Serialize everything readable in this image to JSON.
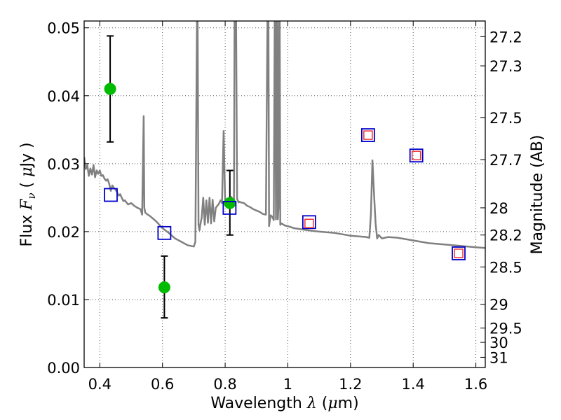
{
  "chart_data": {
    "type": "scatter",
    "title": "",
    "xlabel": "Wavelength  λ (μm)",
    "ylabel": "Flux  F_ν  ( μJy )",
    "y2label": "Magnitude (AB)",
    "xlim": [
      0.35,
      1.63
    ],
    "ylim": [
      0.0,
      0.051
    ],
    "grid": true,
    "legend": "none",
    "x_ticks": [
      {
        "value": 0.4,
        "label": "0.4"
      },
      {
        "value": 0.6,
        "label": "0.6"
      },
      {
        "value": 0.8,
        "label": "0.8"
      },
      {
        "value": 1.0,
        "label": "1"
      },
      {
        "value": 1.2,
        "label": "1.2"
      },
      {
        "value": 1.4,
        "label": "1.4"
      },
      {
        "value": 1.6,
        "label": "1.6"
      }
    ],
    "y_ticks": [
      {
        "value": 0.0,
        "label": "0.00"
      },
      {
        "value": 0.01,
        "label": "0.01"
      },
      {
        "value": 0.02,
        "label": "0.02"
      },
      {
        "value": 0.03,
        "label": "0.03"
      },
      {
        "value": 0.04,
        "label": "0.04"
      },
      {
        "value": 0.05,
        "label": "0.05"
      }
    ],
    "y2_ticks": [
      {
        "flux": 0.0487,
        "label": "27.2"
      },
      {
        "flux": 0.0444,
        "label": "27.3"
      },
      {
        "flux": 0.0368,
        "label": "27.5"
      },
      {
        "flux": 0.0306,
        "label": "27.7"
      },
      {
        "flux": 0.0235,
        "label": "28"
      },
      {
        "flux": 0.0195,
        "label": "28.2"
      },
      {
        "flux": 0.0148,
        "label": "28.5"
      },
      {
        "flux": 0.0093,
        "label": "29"
      },
      {
        "flux": 0.0058,
        "label": "29.5"
      },
      {
        "flux": 0.0037,
        "label": "30"
      },
      {
        "flux": 0.0015,
        "label": "31"
      }
    ],
    "colors": {
      "model": "#808080",
      "observed": "#00bb00",
      "errorbar": "#000000",
      "model_square": "#0000cc",
      "inner_square": "#ee3333",
      "grid": "#555555"
    },
    "series": [
      {
        "kind": "line",
        "x": [
          0.35,
          0.355,
          0.36,
          0.365,
          0.37,
          0.375,
          0.38,
          0.385,
          0.39,
          0.395,
          0.4,
          0.405,
          0.41,
          0.415,
          0.42,
          0.425,
          0.43,
          0.435,
          0.44,
          0.445,
          0.45,
          0.455,
          0.46,
          0.465,
          0.47,
          0.475,
          0.48,
          0.49,
          0.5,
          0.51,
          0.52,
          0.53,
          0.535,
          0.54,
          0.542,
          0.545,
          0.55,
          0.56,
          0.58,
          0.6,
          0.62,
          0.64,
          0.66,
          0.68,
          0.7,
          0.705,
          0.71,
          0.712,
          0.715,
          0.718,
          0.72,
          0.723,
          0.725,
          0.73,
          0.735,
          0.74,
          0.745,
          0.75,
          0.755,
          0.76,
          0.765,
          0.77,
          0.775,
          0.78,
          0.785,
          0.79,
          0.795,
          0.8,
          0.805,
          0.81,
          0.815,
          0.82,
          0.825,
          0.828,
          0.83,
          0.835,
          0.838,
          0.84,
          0.843,
          0.845,
          0.85,
          0.86,
          0.87,
          0.88,
          0.89,
          0.9,
          0.91,
          0.92,
          0.93,
          0.935,
          0.938,
          0.94,
          0.942,
          0.945,
          0.95,
          0.955,
          0.958,
          0.96,
          0.962,
          0.964,
          0.966,
          0.968,
          0.97,
          0.972,
          0.974,
          0.976,
          0.98,
          0.99,
          1.0,
          1.02,
          1.05,
          1.08,
          1.1,
          1.15,
          1.2,
          1.25,
          1.26,
          1.265,
          1.27,
          1.275,
          1.28,
          1.285,
          1.29,
          1.3,
          1.32,
          1.35,
          1.4,
          1.45,
          1.5,
          1.55,
          1.6,
          1.63
        ],
        "y": [
          0.031,
          0.0292,
          0.0298,
          0.0282,
          0.0293,
          0.0284,
          0.0298,
          0.028,
          0.029,
          0.0285,
          0.029,
          0.0282,
          0.0283,
          0.0278,
          0.0275,
          0.0277,
          0.027,
          0.026,
          0.0268,
          0.0264,
          0.0262,
          0.0258,
          0.0253,
          0.0255,
          0.025,
          0.0245,
          0.0246,
          0.024,
          0.0242,
          0.0238,
          0.0235,
          0.0233,
          0.0225,
          0.037,
          0.0235,
          0.0228,
          0.0226,
          0.0223,
          0.0215,
          0.0205,
          0.0198,
          0.019,
          0.0185,
          0.018,
          0.0178,
          0.0185,
          0.051,
          0.051,
          0.021,
          0.0202,
          0.0208,
          0.0216,
          0.022,
          0.025,
          0.021,
          0.0246,
          0.0213,
          0.025,
          0.0212,
          0.0247,
          0.0215,
          0.0235,
          0.0238,
          0.0241,
          0.0246,
          0.0242,
          0.0348,
          0.0242,
          0.0246,
          0.0247,
          0.0243,
          0.0251,
          0.0244,
          0.0238,
          0.051,
          0.051,
          0.0248,
          0.0246,
          0.0243,
          0.0244,
          0.0243,
          0.0242,
          0.0238,
          0.0236,
          0.0233,
          0.0231,
          0.0229,
          0.0226,
          0.0225,
          0.051,
          0.051,
          0.0208,
          0.0215,
          0.0224,
          0.0222,
          0.0217,
          0.051,
          0.051,
          0.0218,
          0.051,
          0.051,
          0.0218,
          0.0235,
          0.051,
          0.051,
          0.021,
          0.0212,
          0.0209,
          0.0208,
          0.0205,
          0.0203,
          0.0201,
          0.02,
          0.0198,
          0.0194,
          0.0192,
          0.0191,
          0.0225,
          0.0305,
          0.0255,
          0.0212,
          0.019,
          0.0195,
          0.019,
          0.0192,
          0.0191,
          0.0187,
          0.0183,
          0.0181,
          0.0179,
          0.0177,
          0.0176
        ]
      },
      {
        "kind": "observed_with_error",
        "x": [
          0.433,
          0.606,
          0.815
        ],
        "y": [
          0.041,
          0.0118,
          0.0242
        ],
        "yerr_low": [
          0.0332,
          0.0073,
          0.0195
        ],
        "yerr_high": [
          0.0488,
          0.0164,
          0.029
        ]
      },
      {
        "kind": "model_square",
        "x": [
          0.435,
          0.606,
          0.814,
          1.068,
          1.256,
          1.41,
          1.545
        ],
        "y": [
          0.0254,
          0.0198,
          0.0235,
          0.0214,
          0.0342,
          0.0312,
          0.0168
        ]
      },
      {
        "kind": "inner_square",
        "x": [
          1.068,
          1.256,
          1.41,
          1.545
        ],
        "y": [
          0.0212,
          0.0342,
          0.0312,
          0.0168
        ]
      }
    ]
  }
}
